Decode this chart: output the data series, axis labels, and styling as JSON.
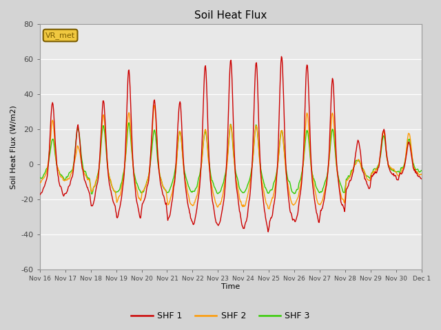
{
  "title": "Soil Heat Flux",
  "ylabel": "Soil Heat Flux (W/m2)",
  "xlabel": "Time",
  "ylim": [
    -60,
    80
  ],
  "fig_bg_color": "#d4d4d4",
  "plot_bg_color": "#e8e8e8",
  "grid_color": "white",
  "colors": {
    "SHF 1": "#cc0000",
    "SHF 2": "#ff9900",
    "SHF 3": "#33cc00"
  },
  "legend_label": "VR_met",
  "x_tick_labels": [
    "Nov 16",
    "Nov 17",
    "Nov 18",
    "Nov 19",
    "Nov 20",
    "Nov 21",
    "Nov 22",
    "Nov 23",
    "Nov 24",
    "Nov 25",
    "Nov 26",
    "Nov 27",
    "Nov 28",
    "Nov 29",
    "Nov 30",
    "Dec 1"
  ],
  "linewidth": 1.0
}
